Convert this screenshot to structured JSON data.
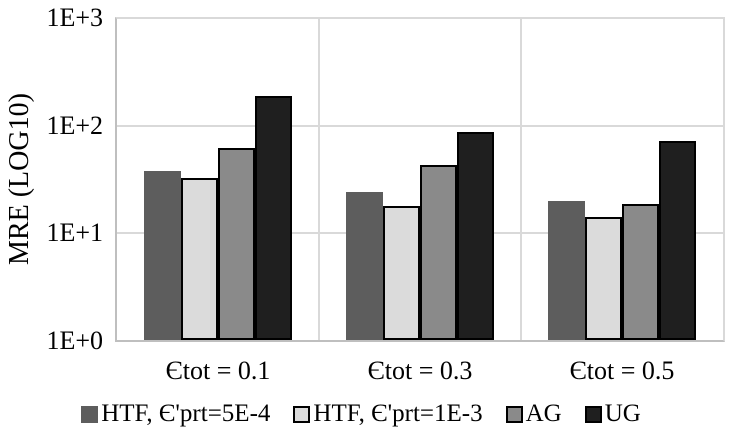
{
  "chart_data": {
    "type": "bar",
    "title": "",
    "ylabel": "MRE (LOG10)",
    "xlabel": "",
    "y_scale": "log10",
    "ylim": [
      "1E+0",
      "1E+3"
    ],
    "ytick_labels": [
      "1E+3",
      "1E+2",
      "1E+1",
      "1E+0"
    ],
    "categories": [
      "Єtot = 0.1",
      "Єtot = 0.3",
      "Єtot = 0.5"
    ],
    "series": [
      {
        "name": "HTF, Є'prt=5E-4",
        "color": "#5d5d5d",
        "outlined": false,
        "values": [
          38,
          24,
          20
        ]
      },
      {
        "name": "HTF, Є'prt=1E-3",
        "color": "#dbdbdb",
        "outlined": true,
        "values": [
          33,
          18,
          14
        ]
      },
      {
        "name": "AG",
        "color": "#8a8a8a",
        "outlined": true,
        "values": [
          63,
          43,
          18.5
        ]
      },
      {
        "name": "UG",
        "color": "#1f1f1f",
        "outlined": true,
        "values": [
          190,
          88,
          72
        ]
      }
    ],
    "legend_position": "bottom",
    "grid": true,
    "colors": {
      "plot_border": "#d9d9d9",
      "axis_line": "#bfbfbf",
      "gridline": "#d9d9d9",
      "bar_outline": "#000000",
      "text": "#000000",
      "background": "#ffffff"
    }
  }
}
